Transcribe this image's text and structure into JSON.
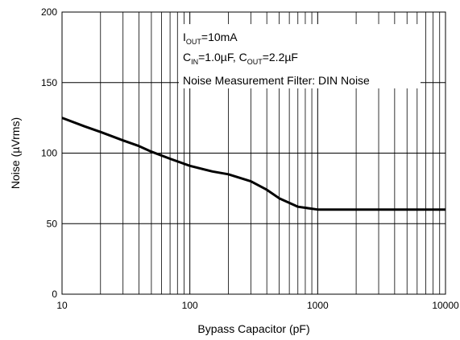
{
  "chart_data": {
    "type": "line",
    "x_scale": "log",
    "xlim": [
      10,
      10000
    ],
    "ylim": [
      0,
      200
    ],
    "xlabel": "Bypass Capacitor (pF)",
    "ylabel": "Noise (µVrms)",
    "x_ticks": [
      "10",
      "100",
      "1000",
      "10000"
    ],
    "y_ticks": [
      "0",
      "50",
      "100",
      "150",
      "200"
    ],
    "grid": true,
    "annotations": [
      {
        "main": "I",
        "sub": "OUT",
        "rest": "=10mA"
      },
      {
        "parts": [
          "C",
          "IN",
          "=1.0µF, C",
          "OUT",
          "=2.2µF"
        ]
      },
      {
        "text": "Noise Measurement Filter: DIN Noise"
      }
    ],
    "series": [
      {
        "color": "#000000",
        "x": [
          10,
          15,
          20,
          30,
          40,
          50,
          70,
          100,
          150,
          200,
          300,
          400,
          500,
          700,
          1000,
          1500,
          2000,
          5000,
          10000
        ],
        "y": [
          125,
          119,
          115,
          109,
          105,
          101,
          96,
          91,
          87,
          85,
          80,
          74,
          68,
          62,
          60,
          60,
          60,
          60,
          60
        ]
      }
    ]
  }
}
